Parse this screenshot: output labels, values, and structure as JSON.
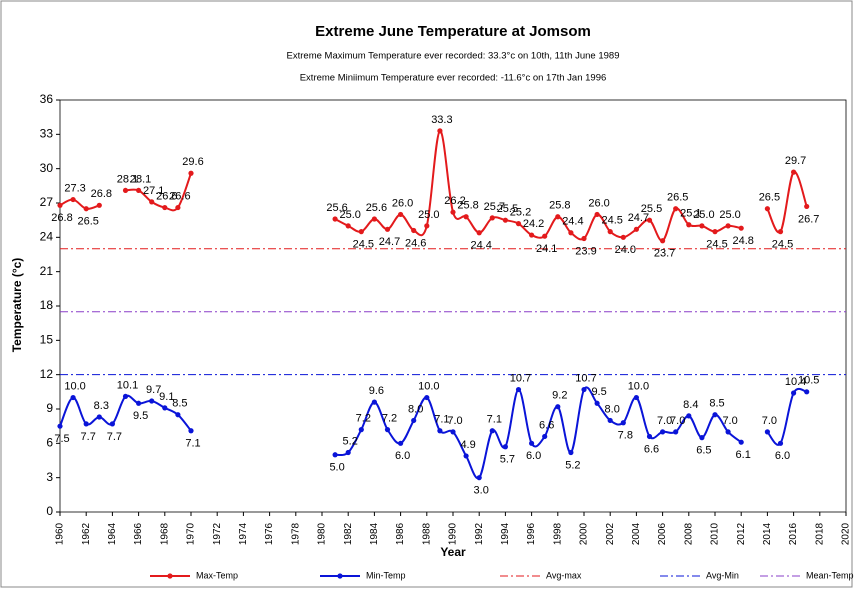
{
  "chart_data": {
    "type": "line",
    "title": "Extreme June Temperature at Jomsom",
    "subtitles": [
      "Extreme Maximum Temperature ever recorded: 33.3°c on 10th, 11th June 1989",
      "Extreme Miniimum Temperature ever recorded:  -11.6°c on     17th Jan 1996"
    ],
    "x_label": "Year",
    "y_label": "Temperature (°c)",
    "x": [
      1960,
      1961,
      1962,
      1963,
      1964,
      1965,
      1966,
      1967,
      1968,
      1969,
      1970,
      1971,
      1972,
      1973,
      1974,
      1975,
      1976,
      1977,
      1978,
      1979,
      1980,
      1981,
      1982,
      1983,
      1984,
      1985,
      1986,
      1987,
      1988,
      1989,
      1990,
      1991,
      1992,
      1993,
      1994,
      1995,
      1996,
      1997,
      1998,
      1999,
      2000,
      2001,
      2002,
      2003,
      2004,
      2005,
      2006,
      2007,
      2008,
      2009,
      2010,
      2011,
      2012,
      2013,
      2014,
      2015,
      2016,
      2017
    ],
    "series": [
      {
        "name": "Max-Temp",
        "color": "#e31a1c",
        "values": [
          26.8,
          27.3,
          26.5,
          26.8,
          null,
          28.1,
          28.1,
          27.1,
          26.6,
          26.6,
          29.6,
          null,
          null,
          null,
          null,
          null,
          null,
          null,
          null,
          null,
          null,
          25.6,
          25.0,
          24.5,
          25.6,
          24.7,
          26.0,
          24.6,
          25.0,
          33.3,
          26.2,
          25.8,
          24.4,
          25.7,
          25.5,
          25.2,
          24.2,
          24.1,
          25.8,
          24.4,
          23.9,
          26.0,
          24.5,
          24.0,
          24.7,
          25.5,
          23.7,
          26.5,
          25.1,
          25.0,
          24.5,
          25.0,
          24.8,
          null,
          26.5,
          24.5,
          29.7,
          26.7
        ],
        "value_labels": [
          "26.8",
          "27.3",
          "26.5",
          "26.8",
          null,
          "28.1",
          "28.1",
          "27.1",
          "26.6",
          "26.6",
          "29.6",
          null,
          null,
          null,
          null,
          null,
          null,
          null,
          null,
          null,
          null,
          "25.6",
          "25.0",
          "24.5",
          "25.6",
          "24.7",
          "26.0",
          "24.6",
          "25.0",
          "33.3",
          "26.2",
          "25.8",
          "24.4",
          "25.7",
          "25.5",
          "25.2",
          "24.2",
          "24.1",
          "25.8",
          "24.4",
          "23.9",
          "26.0",
          "24.5",
          "24.0",
          "24.7",
          "25.5",
          "23.7",
          "26.5",
          "25.1",
          "25.0",
          "24.5",
          "25.0",
          "24.8",
          null,
          "26.5",
          "24.5",
          "29.7",
          "26.7"
        ]
      },
      {
        "name": "Min-Temp",
        "color": "#0a14d8",
        "values": [
          7.5,
          10.0,
          7.7,
          8.3,
          7.7,
          10.1,
          9.5,
          9.7,
          9.1,
          8.5,
          7.1,
          null,
          null,
          null,
          null,
          null,
          null,
          null,
          null,
          null,
          null,
          5.0,
          5.2,
          7.2,
          9.6,
          7.2,
          6.0,
          8.0,
          10.0,
          7.1,
          7.0,
          4.9,
          3.0,
          7.1,
          5.7,
          10.7,
          6.0,
          6.6,
          9.2,
          5.2,
          10.7,
          9.5,
          8.0,
          7.8,
          10.0,
          6.6,
          7.0,
          7.0,
          8.4,
          6.5,
          8.5,
          7.0,
          6.1,
          null,
          7.0,
          6.0,
          10.4,
          10.5
        ],
        "value_labels": [
          "7.5",
          "10.0",
          "7.7",
          "8.3",
          "7.7",
          "10.1",
          "9.5",
          "9.7",
          "9.1",
          "8.5",
          "7.1",
          null,
          null,
          null,
          null,
          null,
          null,
          null,
          null,
          null,
          null,
          "5.0",
          "5.2",
          "7.2",
          "9.6",
          "7.2",
          "6.0",
          "8.0",
          "10.0",
          "7.1",
          "7.0",
          "4.9",
          "3.0",
          "7.1",
          "5.7",
          "10.7",
          "6.0",
          "6.6",
          "9.2",
          "5.2",
          "10.7",
          "9.5",
          "8.0",
          "7.8",
          "10.0",
          "6.6",
          "7.0",
          "7.0",
          "8.4",
          "6.5",
          "8.5",
          "7.0",
          "6.1",
          null,
          "7.0",
          "6.0",
          "10.4",
          "10.5"
        ]
      }
    ],
    "reference_lines": [
      {
        "name": "Avg-max",
        "value": 23.0,
        "color": "#e31a1c"
      },
      {
        "name": "Avg-Min",
        "value": 12.0,
        "color": "#0a14d8"
      },
      {
        "name": "Mean-Temp",
        "value": 17.5,
        "color": "#8a3fc8"
      }
    ],
    "xlim": [
      1960,
      2020
    ],
    "xticks": [
      1960,
      1962,
      1964,
      1966,
      1968,
      1970,
      1972,
      1974,
      1976,
      1978,
      1980,
      1982,
      1984,
      1986,
      1988,
      1990,
      1992,
      1994,
      1996,
      1998,
      2000,
      2002,
      2004,
      2006,
      2008,
      2010,
      2012,
      2014,
      2016,
      2018,
      2020
    ],
    "ylim": [
      0,
      36
    ],
    "yticks": [
      0,
      3,
      6,
      9,
      12,
      15,
      18,
      21,
      24,
      27,
      30,
      33,
      36
    ],
    "legend": "bottom"
  }
}
